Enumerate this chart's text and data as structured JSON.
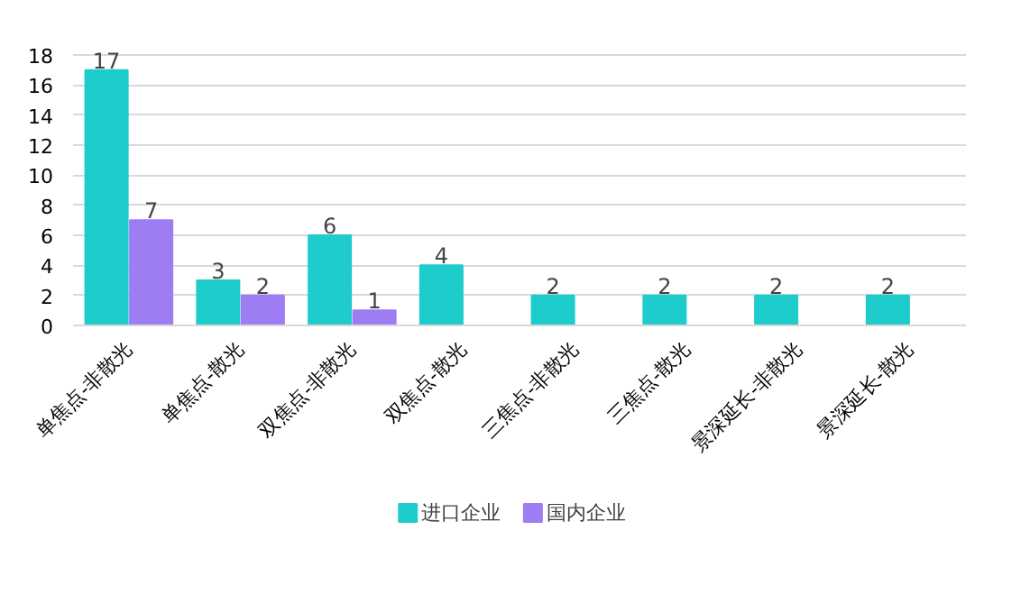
{
  "chart_data": {
    "type": "bar",
    "categories": [
      "单焦点-非散光",
      "单焦点-散光",
      "双焦点-非散光",
      "双焦点-散光",
      "三焦点-非散光",
      "三焦点-散光",
      "景深延长-非散光",
      "景深延长-散光"
    ],
    "series": [
      {
        "name": "进口企业",
        "color": "#1fcccc",
        "values": [
          17,
          3,
          6,
          4,
          2,
          2,
          2,
          2
        ]
      },
      {
        "name": "国内企业",
        "color": "#9d7cf4",
        "values": [
          7,
          2,
          1,
          null,
          null,
          null,
          null,
          null
        ]
      }
    ],
    "ylim": [
      0,
      18
    ],
    "yticks": [
      0,
      2,
      4,
      6,
      8,
      10,
      12,
      14,
      16,
      18
    ],
    "grid": "y",
    "legend": "bottom",
    "data_labels": true
  }
}
